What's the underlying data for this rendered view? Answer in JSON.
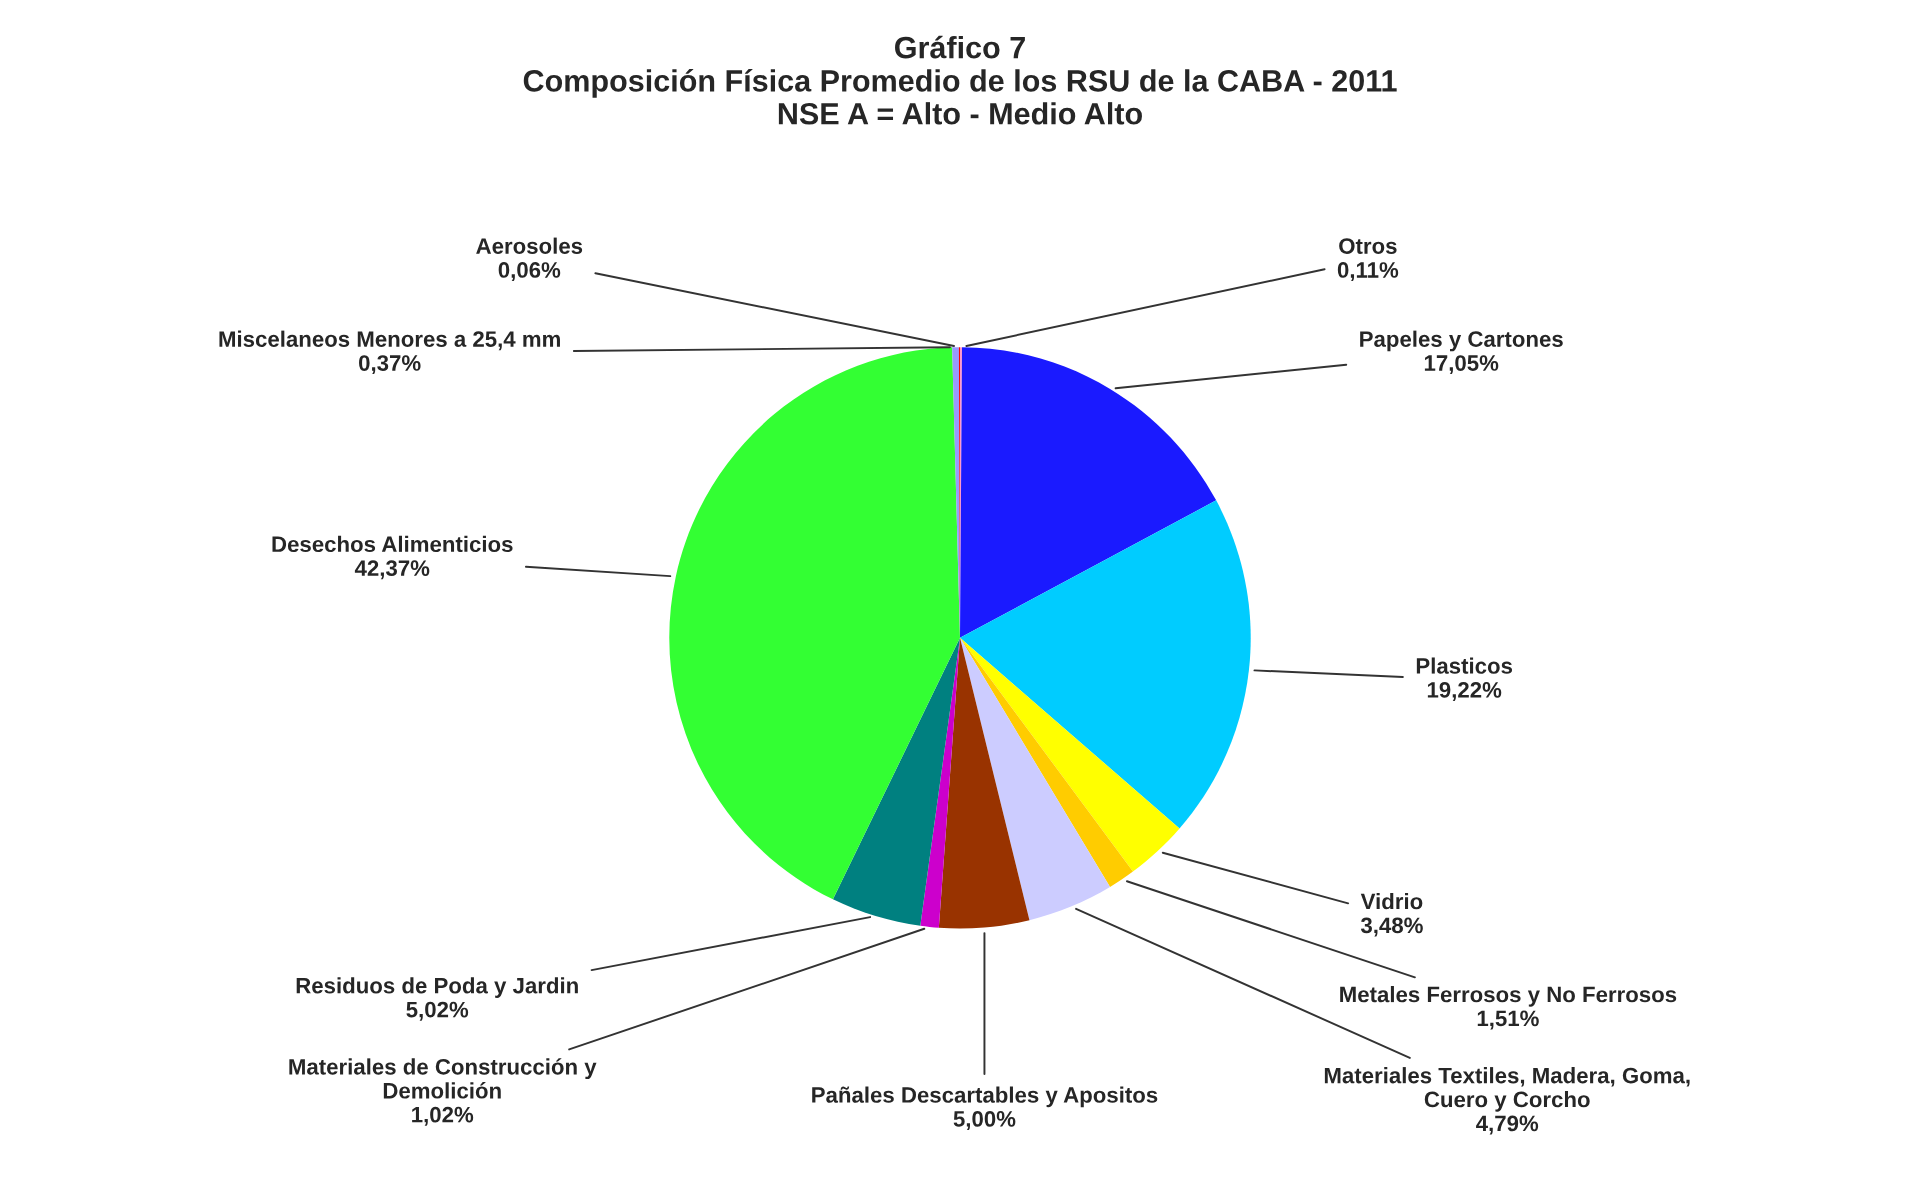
{
  "chart_data": {
    "type": "pie",
    "title": "Gráfico 7\nComposición Física Promedio de los RSU de la CABA - 2011\nNSE A = Alto - Medio Alto",
    "categories": [
      "Otros",
      "Papeles y Cartones",
      "Plasticos",
      "Vidrio",
      "Metales Ferrosos y No Ferrosos",
      "Materiales Textiles, Madera, Goma,\nCuero y Corcho",
      "Pañales Descartables y Apositos",
      "Materiales de Construcción y\nDemolición",
      "Residuos de Poda y Jardin",
      "Desechos Alimenticios",
      "Miscelaneos Menores a 25,4 mm",
      "Aerosoles"
    ],
    "values": [
      0.11,
      17.05,
      19.22,
      3.48,
      1.51,
      4.79,
      5.0,
      1.02,
      5.02,
      42.37,
      0.37,
      0.06
    ],
    "value_labels": [
      "0,11%",
      "17,05%",
      "19,22%",
      "3,48%",
      "1,51%",
      "4,79%",
      "5,00%",
      "1,02%",
      "5,02%",
      "42,37%",
      "0,37%",
      "0,06%"
    ],
    "colors": [
      "#ff99cc",
      "#1a1aff",
      "#00ccff",
      "#ffff00",
      "#ffcc00",
      "#ccccff",
      "#993300",
      "#cc00cc",
      "#008080",
      "#33ff33",
      "#9999ff",
      "#ff0000"
    ],
    "legend": false
  }
}
